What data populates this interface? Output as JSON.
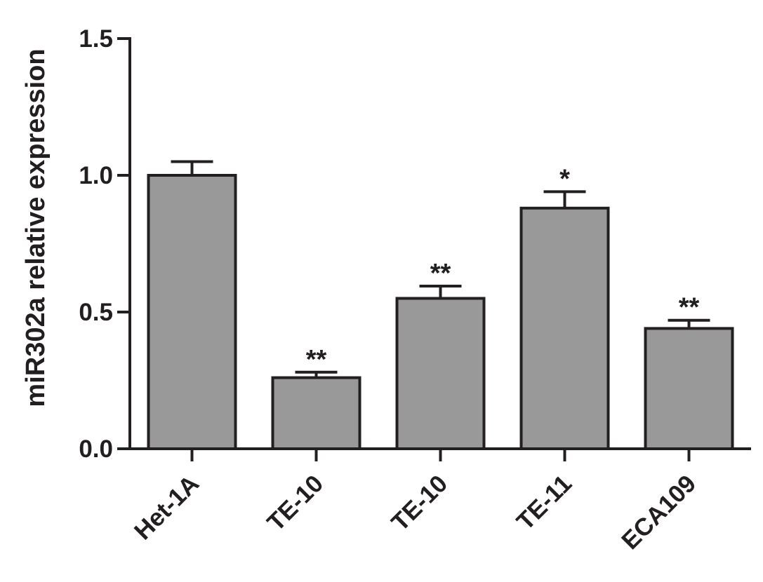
{
  "chart_data": {
    "type": "bar",
    "title": "",
    "xlabel": "",
    "ylabel": "miR302a relative expression",
    "ylim": [
      0,
      1.5
    ],
    "yticks": [
      "0.0",
      "0.5",
      "1.0",
      "1.5"
    ],
    "ytick_values": [
      0,
      0.5,
      1.0,
      1.5
    ],
    "categories": [
      "Het-1A",
      "TE-10",
      "TE-10",
      "TE-11",
      "ECA109"
    ],
    "values": [
      1.0,
      0.26,
      0.55,
      0.88,
      0.44
    ],
    "errors": [
      0.05,
      0.02,
      0.045,
      0.06,
      0.03
    ],
    "significance": [
      "",
      "**",
      "**",
      "*",
      "**"
    ],
    "bar_color": "#999999",
    "edge_color": "#231f20",
    "grid": false,
    "legend": "none"
  }
}
